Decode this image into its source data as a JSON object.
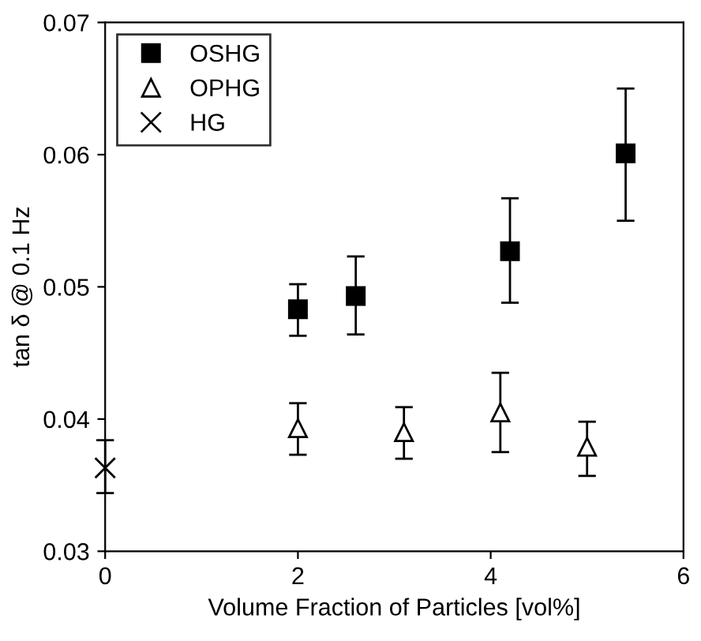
{
  "chart_data": {
    "type": "scatter",
    "xlabel": "Volume Fraction of Particles [vol%]",
    "ylabel": "tan δ @ 0.1 Hz",
    "xlim": [
      0,
      6
    ],
    "ylim": [
      0.03,
      0.07
    ],
    "xticks": [
      0,
      2,
      4,
      6
    ],
    "yticks": [
      {
        "value": 0.03,
        "label": "0.03"
      },
      {
        "value": 0.04,
        "label": "0.04"
      },
      {
        "value": 0.05,
        "label": "0.05"
      },
      {
        "value": 0.06,
        "label": "0.06"
      },
      {
        "value": 0.07,
        "label": "0.07"
      }
    ],
    "grid": false,
    "legend": "top left",
    "series": [
      {
        "name": "OSHG",
        "color": "#000000",
        "marker": "square",
        "x": [
          2,
          2.6,
          4.2,
          5.4
        ],
        "values": [
          0.0483,
          0.0493,
          0.0527,
          0.0601
        ],
        "errors": [
          [
            0.0463,
            0.0502
          ],
          [
            0.0464,
            0.0523
          ],
          [
            0.0488,
            0.0567
          ],
          [
            0.055,
            0.065
          ]
        ]
      },
      {
        "name": "OPHG",
        "color": "#000000",
        "marker": "triangle",
        "x": [
          2,
          3.1,
          4.1,
          5
        ],
        "values": [
          0.0393,
          0.039,
          0.0405,
          0.0379
        ],
        "errors": [
          [
            0.0373,
            0.0412
          ],
          [
            0.037,
            0.0409
          ],
          [
            0.0375,
            0.0435
          ],
          [
            0.0357,
            0.0398
          ]
        ]
      },
      {
        "name": "HG",
        "color": "#000000",
        "marker": "cross",
        "x": [
          0
        ],
        "values": [
          0.0363
        ],
        "errors": [
          [
            0.0344,
            0.0384
          ]
        ]
      }
    ]
  }
}
